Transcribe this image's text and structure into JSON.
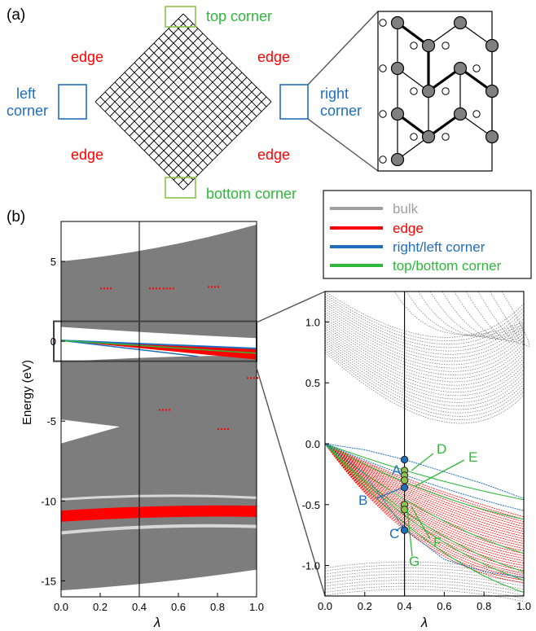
{
  "panels": {
    "a": "(a)",
    "b": "(b)"
  },
  "lattice_labels": {
    "top": "top corner",
    "bottom": "bottom corner",
    "left": [
      "left",
      "corner"
    ],
    "right": [
      "right",
      "corner"
    ],
    "edge": "edge"
  },
  "colors": {
    "bulk": "#a0a0a0",
    "bulk_dots": "#707070",
    "edge": "#ff0000",
    "corner_lr": "#1f6fbf",
    "corner_tb": "#2fb83a",
    "points": "#8cc24a",
    "zoom_box": "#404040"
  },
  "legend": [
    {
      "label": "bulk",
      "color": "#a0a0a0"
    },
    {
      "label": "edge",
      "color": "#ff0000"
    },
    {
      "label": "right/left corner",
      "color": "#1f6fbf"
    },
    {
      "label": "top/bottom corner",
      "color": "#2fb83a"
    }
  ],
  "chart_data": [
    {
      "type": "area",
      "xlabel": "λ",
      "ylabel": "Energy (eV)",
      "xlim": [
        0.0,
        1.0
      ],
      "ylim": [
        -16,
        7.5
      ],
      "xticks": [
        "0.0",
        "0.2",
        "0.4",
        "0.6",
        "0.8",
        "1.0"
      ],
      "yticks": [
        5,
        0,
        -5,
        -10,
        -15
      ],
      "ytick_labels": [
        "5",
        "0",
        "-5",
        "-10",
        "-15"
      ],
      "marker_line_x": 0.4,
      "series": [
        {
          "name": "bulk",
          "upper_band": {
            "x": [
              0,
              0.4,
              1.0
            ],
            "top": [
              5.0,
              5.5,
              7.3
            ],
            "bottom": [
              0.9,
              0.5,
              0.2
            ]
          }
        },
        {
          "name": "bulk",
          "lower_band": {
            "x": [
              0,
              0.4,
              1.0
            ],
            "top": [
              -1.3,
              -1.0,
              -0.9
            ],
            "bottom": [
              -15.5,
              -15.2,
              -14.3
            ]
          }
        },
        {
          "name": "edge",
          "x": [
            0,
            0.4,
            1.0
          ],
          "y": [
            -11.0,
            -10.5,
            -10.6
          ]
        },
        {
          "name": "edge",
          "x": [
            0,
            0.4,
            1.0
          ],
          "y": [
            0.0,
            -0.4,
            -0.9
          ]
        }
      ]
    },
    {
      "type": "line",
      "xlabel": "λ",
      "xlim": [
        0.0,
        1.0
      ],
      "ylim": [
        -1.25,
        1.25
      ],
      "xticks": [
        "0.0",
        "0.2",
        "0.4",
        "0.6",
        "0.8",
        "1.0"
      ],
      "yticks": [
        "1.0",
        "0.5",
        "0.0",
        "-0.5",
        "-1.0"
      ],
      "ytick_values": [
        1.0,
        0.5,
        0.0,
        -0.5,
        -1.0
      ],
      "marker_line_x": 0.4,
      "series": [
        {
          "name": "right/left corner",
          "x": [
            0,
            0.2,
            0.4,
            0.6,
            0.8,
            1.0
          ],
          "y": [
            0,
            -0.05,
            -0.13,
            -0.23,
            -0.33,
            -0.45
          ]
        },
        {
          "name": "right/left corner",
          "x": [
            0,
            0.2,
            0.4,
            0.6,
            0.8,
            1.0
          ],
          "y": [
            0,
            -0.25,
            -0.7,
            -0.95,
            -1.05,
            -1.1
          ]
        },
        {
          "name": "top/bottom corner",
          "x": [
            0,
            0.2,
            0.4,
            0.6,
            0.8,
            1.0
          ],
          "y": [
            0,
            -0.08,
            -0.22,
            -0.35,
            -0.42,
            -0.46
          ]
        },
        {
          "name": "top/bottom corner",
          "x": [
            0,
            0.2,
            0.4,
            0.6,
            0.8,
            1.0
          ],
          "y": [
            0,
            -0.2,
            -0.55,
            -0.85,
            -1.0,
            -1.15
          ]
        }
      ],
      "points": [
        {
          "label": "A",
          "y": -0.13,
          "color": "#1f6fbf"
        },
        {
          "label": "D",
          "y": -0.22,
          "color": "#8cc24a"
        },
        {
          "label": "",
          "y": -0.26,
          "color": "#8cc24a"
        },
        {
          "label": "E",
          "y": -0.3,
          "color": "#8cc24a"
        },
        {
          "label": "B",
          "y": -0.36,
          "color": "#1f6fbf"
        },
        {
          "label": "F",
          "y": -0.5,
          "color": "#8cc24a"
        },
        {
          "label": "G",
          "y": -0.54,
          "color": "#8cc24a"
        },
        {
          "label": "C",
          "y": -0.71,
          "color": "#1f6fbf"
        }
      ]
    }
  ]
}
